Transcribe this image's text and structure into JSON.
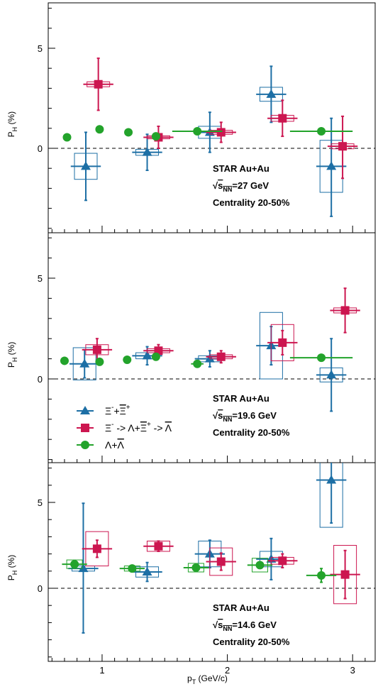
{
  "chart_data": {
    "type": "scatter",
    "x_axis": {
      "label_main": "p",
      "label_sub": "T",
      "label_unit": " (GeV/c)",
      "range": [
        0.57,
        3.18
      ],
      "ticks": [
        1,
        2,
        3
      ],
      "tick_labels": [
        "1",
        "2",
        "3"
      ]
    },
    "y_axis_label": {
      "main": "P",
      "sub": "H",
      "unit": " (%)"
    },
    "legend": {
      "placement": "middle-panel-lower-left",
      "entries": [
        {
          "parts": [
            "Ξ",
            "-",
            "+",
            "Ξ",
            "+"
          ]
        },
        {
          "parts": [
            "Ξ",
            "-",
            " -> Λ+",
            "Ξ",
            "+",
            " -> ",
            "Λ"
          ]
        },
        {
          "parts": [
            "Λ+",
            "Λ"
          ]
        }
      ]
    },
    "series_colors": {
      "xi": "#1d6fa5",
      "xi_via_lambda": "#cc1650",
      "lambda": "#23a32b"
    },
    "panels": [
      {
        "id": "27",
        "experiment": "STAR Au+Au",
        "energy_prefix": "s",
        "energy_sub": "NN",
        "energy_value": "=27 GeV",
        "centrality": "Centrality 20-50%",
        "ylim": [
          -4.3,
          7.3
        ],
        "yticks": [
          0,
          5
        ],
        "ytick_labels": [
          "0",
          "5"
        ],
        "series": [
          {
            "key": "xi",
            "marker": "triangle",
            "points": [
              {
                "x": 0.87,
                "y": -0.9,
                "xerr": 0.12,
                "ylo": -2.6,
                "yhi": 0.8,
                "sys": 1.3
              },
              {
                "x": 1.36,
                "y": -0.2,
                "xerr": 0.12,
                "ylo": -1.1,
                "yhi": 0.7,
                "sys": 0.3
              },
              {
                "x": 1.86,
                "y": 0.8,
                "xerr": 0.12,
                "ylo": -0.2,
                "yhi": 1.8,
                "sys": 0.6
              },
              {
                "x": 2.35,
                "y": 2.7,
                "xerr": 0.12,
                "ylo": 1.3,
                "yhi": 4.1,
                "sys": 0.7
              },
              {
                "x": 2.83,
                "y": -0.9,
                "xerr": 0.12,
                "ylo": -3.4,
                "yhi": 1.5,
                "sys": 2.6
              }
            ]
          },
          {
            "key": "xi_via_lambda",
            "marker": "square",
            "points": [
              {
                "x": 0.97,
                "y": 3.2,
                "xerr": 0.12,
                "ylo": 1.9,
                "yhi": 4.5,
                "sys": 0.25
              },
              {
                "x": 1.45,
                "y": 0.55,
                "xerr": 0.12,
                "ylo": 0.0,
                "yhi": 1.1,
                "sys": 0.15
              },
              {
                "x": 1.95,
                "y": 0.8,
                "xerr": 0.12,
                "ylo": 0.3,
                "yhi": 1.3,
                "sys": 0.2
              },
              {
                "x": 2.44,
                "y": 1.5,
                "xerr": 0.12,
                "ylo": 0.6,
                "yhi": 2.4,
                "sys": 0.3
              },
              {
                "x": 2.92,
                "y": 0.1,
                "xerr": 0.12,
                "ylo": -1.5,
                "yhi": 1.6,
                "sys": 0.25
              }
            ]
          },
          {
            "key": "lambda",
            "marker": "circle",
            "points": [
              {
                "x": 0.72,
                "y": 0.55,
                "xerr": 0,
                "ylo": 0.55,
                "yhi": 0.55,
                "sys": 0
              },
              {
                "x": 0.98,
                "y": 0.95,
                "xerr": 0,
                "ylo": 0.95,
                "yhi": 0.95,
                "sys": 0
              },
              {
                "x": 1.21,
                "y": 0.8,
                "xerr": 0,
                "ylo": 0.8,
                "yhi": 0.8,
                "sys": 0
              },
              {
                "x": 1.43,
                "y": 0.6,
                "xerr": 0,
                "ylo": 0.6,
                "yhi": 0.6,
                "sys": 0
              },
              {
                "x": 1.76,
                "y": 0.85,
                "xerr": 0.2,
                "ylo": 0.85,
                "yhi": 0.85,
                "sys": 0
              },
              {
                "x": 2.75,
                "y": 0.85,
                "xerr": 0.25,
                "ylo": 0.85,
                "yhi": 0.85,
                "sys": 0
              }
            ]
          }
        ]
      },
      {
        "id": "19.6",
        "experiment": "STAR Au+Au",
        "energy_prefix": "s",
        "energy_sub": "NN",
        "energy_value": "=19.6 GeV",
        "centrality": "Centrality 20-50%",
        "ylim": [
          -4.3,
          7.3
        ],
        "yticks": [
          0,
          5
        ],
        "ytick_labels": [
          "0",
          "5"
        ],
        "series": [
          {
            "key": "xi",
            "marker": "triangle",
            "points": [
              {
                "x": 0.86,
                "y": 0.75,
                "xerr": 0.12,
                "ylo": 0.05,
                "yhi": 1.45,
                "sys": 1.6
              },
              {
                "x": 1.36,
                "y": 1.15,
                "xerr": 0.12,
                "ylo": 0.7,
                "yhi": 1.6,
                "sys": 0.3
              },
              {
                "x": 1.86,
                "y": 1.0,
                "xerr": 0.12,
                "ylo": 0.6,
                "yhi": 1.4,
                "sys": 0.3
              },
              {
                "x": 2.35,
                "y": 1.65,
                "xerr": 0.12,
                "ylo": 0.7,
                "yhi": 2.6,
                "sys": 3.3
              },
              {
                "x": 2.83,
                "y": 0.2,
                "xerr": 0.12,
                "ylo": -1.6,
                "yhi": 2.0,
                "sys": 0.7
              }
            ]
          },
          {
            "key": "xi_via_lambda",
            "marker": "square",
            "points": [
              {
                "x": 0.96,
                "y": 1.45,
                "xerr": 0.12,
                "ylo": 0.9,
                "yhi": 2.0,
                "sys": 0.5
              },
              {
                "x": 1.45,
                "y": 1.4,
                "xerr": 0.12,
                "ylo": 1.1,
                "yhi": 1.7,
                "sys": 0.2
              },
              {
                "x": 1.95,
                "y": 1.1,
                "xerr": 0.12,
                "ylo": 0.8,
                "yhi": 1.4,
                "sys": 0.2
              },
              {
                "x": 2.44,
                "y": 1.8,
                "xerr": 0.12,
                "ylo": 1.2,
                "yhi": 2.4,
                "sys": 1.8
              },
              {
                "x": 2.94,
                "y": 3.4,
                "xerr": 0.12,
                "ylo": 2.3,
                "yhi": 4.5,
                "sys": 0.25
              }
            ]
          },
          {
            "key": "lambda",
            "marker": "circle",
            "points": [
              {
                "x": 0.7,
                "y": 0.9,
                "xerr": 0,
                "ylo": 0.9,
                "yhi": 0.9,
                "sys": 0
              },
              {
                "x": 0.98,
                "y": 0.85,
                "xerr": 0,
                "ylo": 0.85,
                "yhi": 0.85,
                "sys": 0
              },
              {
                "x": 1.2,
                "y": 0.95,
                "xerr": 0,
                "ylo": 0.95,
                "yhi": 0.95,
                "sys": 0
              },
              {
                "x": 1.43,
                "y": 1.1,
                "xerr": 0,
                "ylo": 1.1,
                "yhi": 1.1,
                "sys": 0
              },
              {
                "x": 1.76,
                "y": 0.75,
                "xerr": 0.05,
                "ylo": 0.75,
                "yhi": 0.75,
                "sys": 0
              },
              {
                "x": 2.75,
                "y": 1.05,
                "xerr": 0.25,
                "ylo": 1.05,
                "yhi": 1.05,
                "sys": 0
              }
            ]
          }
        ]
      },
      {
        "id": "14.6",
        "experiment": "STAR Au+Au",
        "energy_prefix": "s",
        "energy_sub": "NN",
        "energy_value": "=14.6 GeV",
        "centrality": "Centrality 20-50%",
        "ylim": [
          -4.1,
          7.3
        ],
        "yticks": [
          0,
          5
        ],
        "ytick_labels": [
          "0",
          "5"
        ],
        "series": [
          {
            "key": "xi",
            "marker": "triangle",
            "points": [
              {
                "x": 0.85,
                "y": 1.15,
                "xerr": 0.12,
                "ylo": -2.6,
                "yhi": 4.95,
                "sys": 0.3
              },
              {
                "x": 1.36,
                "y": 0.95,
                "xerr": 0.12,
                "ylo": 0.4,
                "yhi": 1.5,
                "sys": 0.6
              },
              {
                "x": 1.86,
                "y": 2.0,
                "xerr": 0.12,
                "ylo": 1.2,
                "yhi": 2.8,
                "sys": 1.5
              },
              {
                "x": 2.35,
                "y": 1.7,
                "xerr": 0.12,
                "ylo": 0.5,
                "yhi": 2.9,
                "sys": 0.9
              },
              {
                "x": 2.83,
                "y": 6.3,
                "xerr": 0.12,
                "ylo": 3.8,
                "yhi": 8.5,
                "sys": 5.5
              }
            ]
          },
          {
            "key": "xi_via_lambda",
            "marker": "square",
            "points": [
              {
                "x": 0.96,
                "y": 2.3,
                "xerr": 0.12,
                "ylo": 1.8,
                "yhi": 2.8,
                "sys": 2.0
              },
              {
                "x": 1.45,
                "y": 2.45,
                "xerr": 0.12,
                "ylo": 2.15,
                "yhi": 2.75,
                "sys": 0.6
              },
              {
                "x": 1.95,
                "y": 1.55,
                "xerr": 0.12,
                "ylo": 1.05,
                "yhi": 2.05,
                "sys": 1.6
              },
              {
                "x": 2.44,
                "y": 1.6,
                "xerr": 0.12,
                "ylo": 1.2,
                "yhi": 2.0,
                "sys": 0.4
              },
              {
                "x": 2.94,
                "y": 0.8,
                "xerr": 0.12,
                "ylo": -0.6,
                "yhi": 2.2,
                "sys": 3.4
              }
            ]
          },
          {
            "key": "lambda",
            "marker": "circle",
            "points": [
              {
                "x": 0.78,
                "y": 1.4,
                "xerr": 0.1,
                "ylo": 1.4,
                "yhi": 1.4,
                "sys": 0.5
              },
              {
                "x": 1.24,
                "y": 1.15,
                "xerr": 0.1,
                "ylo": 1.15,
                "yhi": 1.15,
                "sys": 0.3
              },
              {
                "x": 1.75,
                "y": 1.2,
                "xerr": 0.1,
                "ylo": 1.2,
                "yhi": 1.2,
                "sys": 0.5
              },
              {
                "x": 2.26,
                "y": 1.35,
                "xerr": 0.1,
                "ylo": 1.35,
                "yhi": 1.35,
                "sys": 0.8
              },
              {
                "x": 2.75,
                "y": 0.75,
                "xerr": 0.12,
                "ylo": 0.35,
                "yhi": 1.15,
                "sys": 0
              }
            ]
          }
        ]
      }
    ]
  }
}
